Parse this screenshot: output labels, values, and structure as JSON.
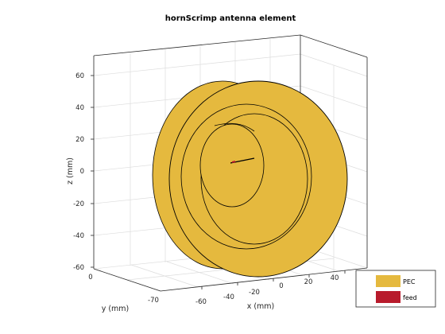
{
  "figure": {
    "title": "hornScrimp antenna element",
    "z_axis": {
      "label": "z (mm)",
      "ticks": [
        "60",
        "40",
        "20",
        "0",
        "-20",
        "-40",
        "-60"
      ]
    },
    "y_axis": {
      "label": "y (mm)",
      "ticks": [
        "0",
        "-70"
      ]
    },
    "x_axis": {
      "label": "x (mm)",
      "ticks": [
        "-60",
        "-40",
        "-20",
        "0",
        "20",
        "40"
      ]
    },
    "legend": {
      "items": [
        {
          "label": "PEC",
          "color": "#E5B93E"
        },
        {
          "label": "feed",
          "color": "#B81B2C"
        }
      ]
    },
    "colors": {
      "pec": "#E5B93E",
      "feed": "#B81B2C",
      "grid": "#DDDDDD",
      "box": "#262626"
    }
  }
}
